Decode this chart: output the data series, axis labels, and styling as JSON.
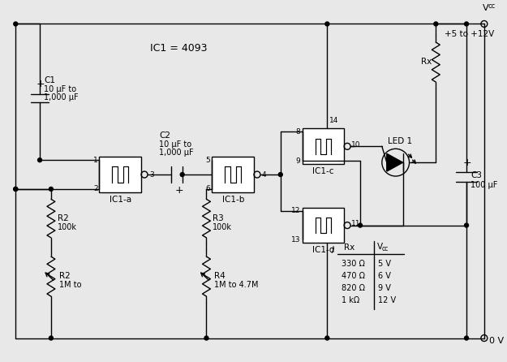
{
  "title": "IC1 = 4093",
  "vcc_range": "+5 to +12V",
  "bg_color": "#e8e8e8",
  "line_color": "#000000",
  "text_color": "#000000",
  "zero_v": "0 V",
  "table_rows": [
    [
      "330 Ω",
      "5 V"
    ],
    [
      "470 Ω",
      "6 V"
    ],
    [
      "820 Ω",
      "9 V"
    ],
    [
      "1 kΩ",
      "12 V"
    ]
  ]
}
